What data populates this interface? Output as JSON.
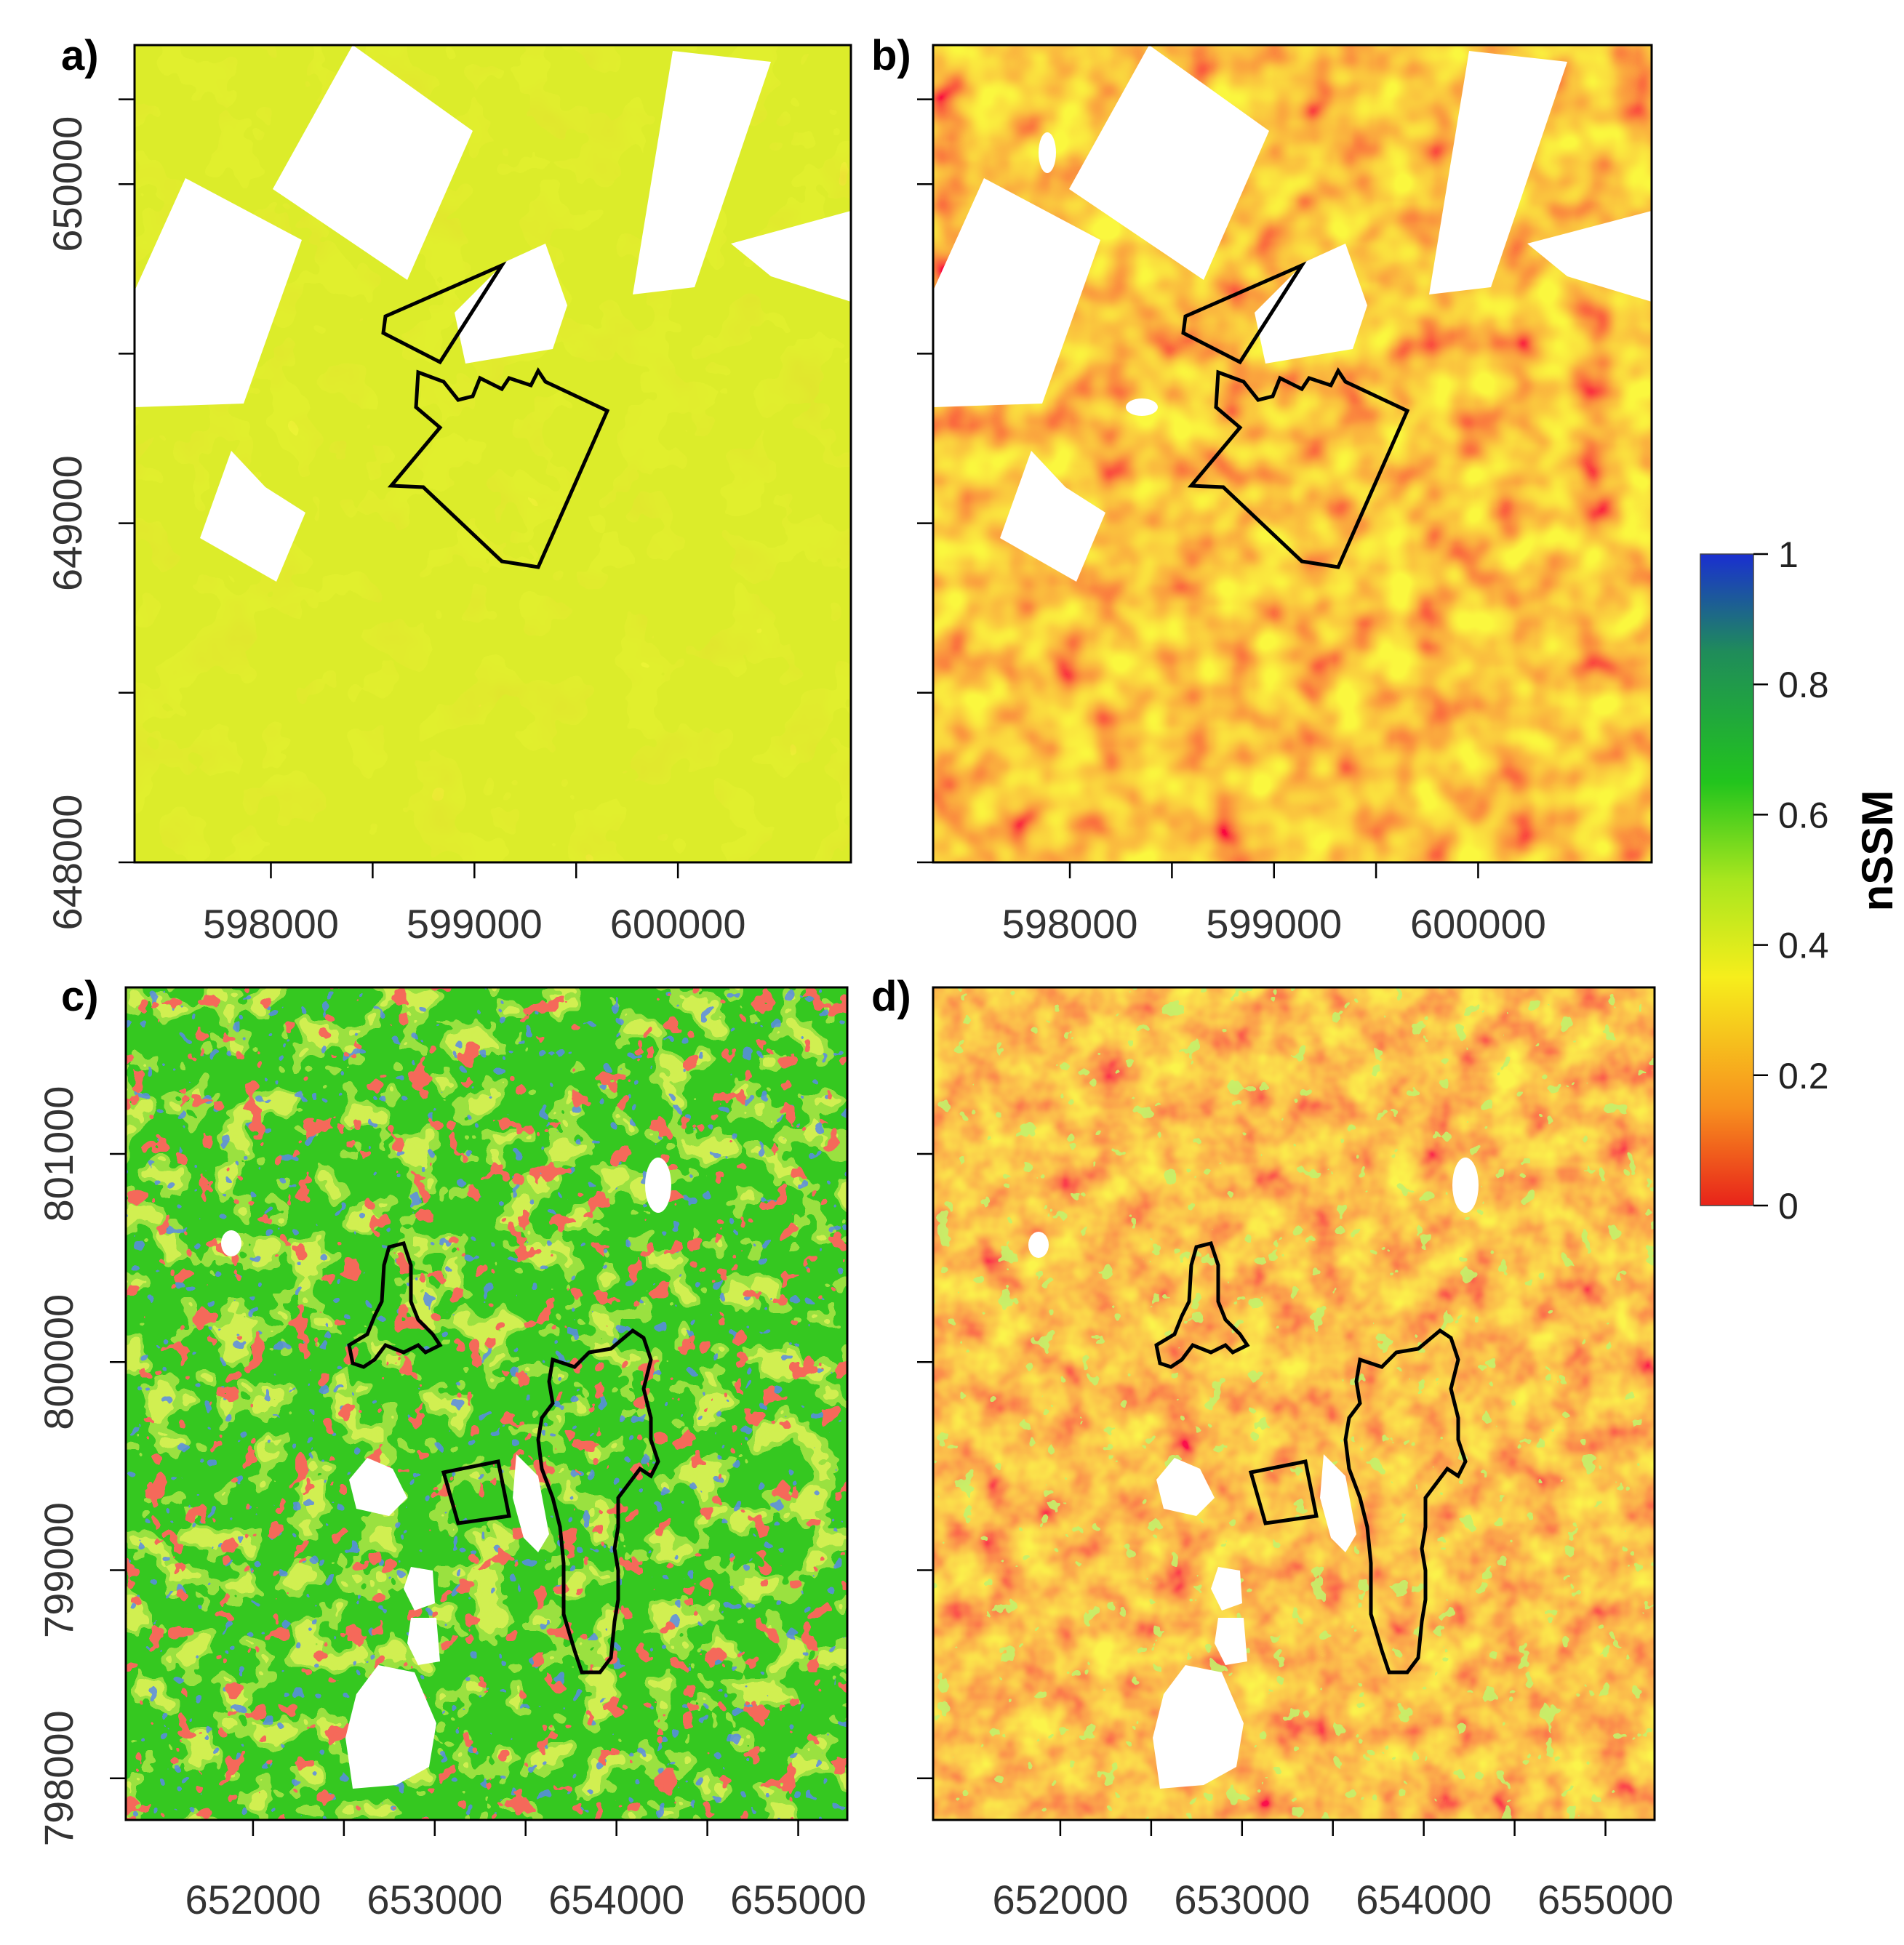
{
  "chart_data": [
    {
      "type": "heatmap",
      "panel": "a)",
      "x_ticks": [
        "598000",
        "599000",
        "600000"
      ],
      "y_ticks": [
        "648000",
        "649000",
        "650000"
      ],
      "xlim": [
        597330,
        600850
      ],
      "ylim": [
        648000,
        650410
      ],
      "palette": "mostly yellow to light green, low-medium nSSM",
      "value_range": [
        0.25,
        0.55
      ]
    },
    {
      "type": "heatmap",
      "panel": "b)",
      "x_ticks": [
        "598000",
        "599000",
        "600000"
      ],
      "y_ticks": [],
      "xlim": [
        597330,
        600850
      ],
      "ylim": [
        648000,
        650410
      ],
      "palette": "mostly red to orange, low nSSM",
      "value_range": [
        0.0,
        0.35
      ]
    },
    {
      "type": "heatmap",
      "panel": "c)",
      "x_ticks": [
        "652000",
        "653000",
        "654000",
        "655000"
      ],
      "y_ticks": [
        "798000",
        "799000",
        "800000",
        "801000"
      ],
      "xlim": [
        651300,
        655270
      ],
      "ylim": [
        797800,
        801800
      ],
      "palette": "mostly green with red patches and some blue, high nSSM",
      "value_range": [
        0.0,
        0.9
      ]
    },
    {
      "type": "heatmap",
      "panel": "d)",
      "x_ticks": [
        "652000",
        "653000",
        "654000",
        "655000"
      ],
      "y_ticks": [],
      "xlim": [
        651300,
        655270
      ],
      "ylim": [
        797800,
        801800
      ],
      "palette": "mostly orange with scattered green, low-medium nSSM",
      "value_range": [
        0.05,
        0.6
      ]
    }
  ],
  "colorbar": {
    "title": "nSSM",
    "tick_labels": [
      "0",
      "0.2",
      "0.4",
      "0.6",
      "0.8",
      "1"
    ],
    "range": [
      0,
      1
    ]
  },
  "colors": {
    "red": "#e8231a",
    "orange": "#f7901e",
    "yellow": "#f6ee1c",
    "lightgreen": "#a8e61e",
    "green": "#22c41d",
    "darkgreen": "#1f8c5a",
    "blue": "#1a2fd0",
    "mask": "#ffffff"
  }
}
